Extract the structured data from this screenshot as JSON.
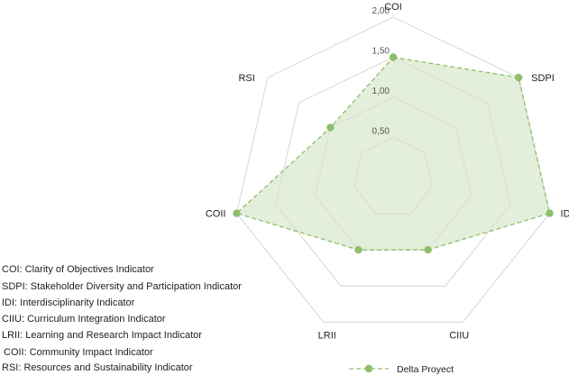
{
  "chart_data": {
    "type": "radar",
    "categories": [
      "COI",
      "SDPI",
      "IDI",
      "CIIU",
      "LRII",
      "COII",
      "RSI"
    ],
    "series": [
      {
        "name": "Delta Proyect",
        "values": [
          1.5,
          2.0,
          2.0,
          1.0,
          1.0,
          2.0,
          1.0
        ],
        "color": "#8dbf6b",
        "fill": "#e3efda",
        "line_style": "dashed"
      }
    ],
    "rlim": [
      0,
      2
    ],
    "ticks": [
      "0,50",
      "1,00",
      "1,50",
      "2,00"
    ],
    "tick_values": [
      0.5,
      1.0,
      1.5,
      2.0
    ],
    "grid_color": "#dcdcdc",
    "legend_position": "bottom"
  },
  "abbreviations": [
    "COI: Clarity of Objectives Indicator",
    "SDPI: Stakeholder Diversity and Participation Indicator",
    "IDI: Interdisciplinarity Indicator",
    "CIIU: Curriculum Integration Indicator",
    "LRII: Learning and Research Impact Indicator",
    "COII: Community Impact Indicator",
    "RSI: Resources and Sustainability Indicator"
  ]
}
